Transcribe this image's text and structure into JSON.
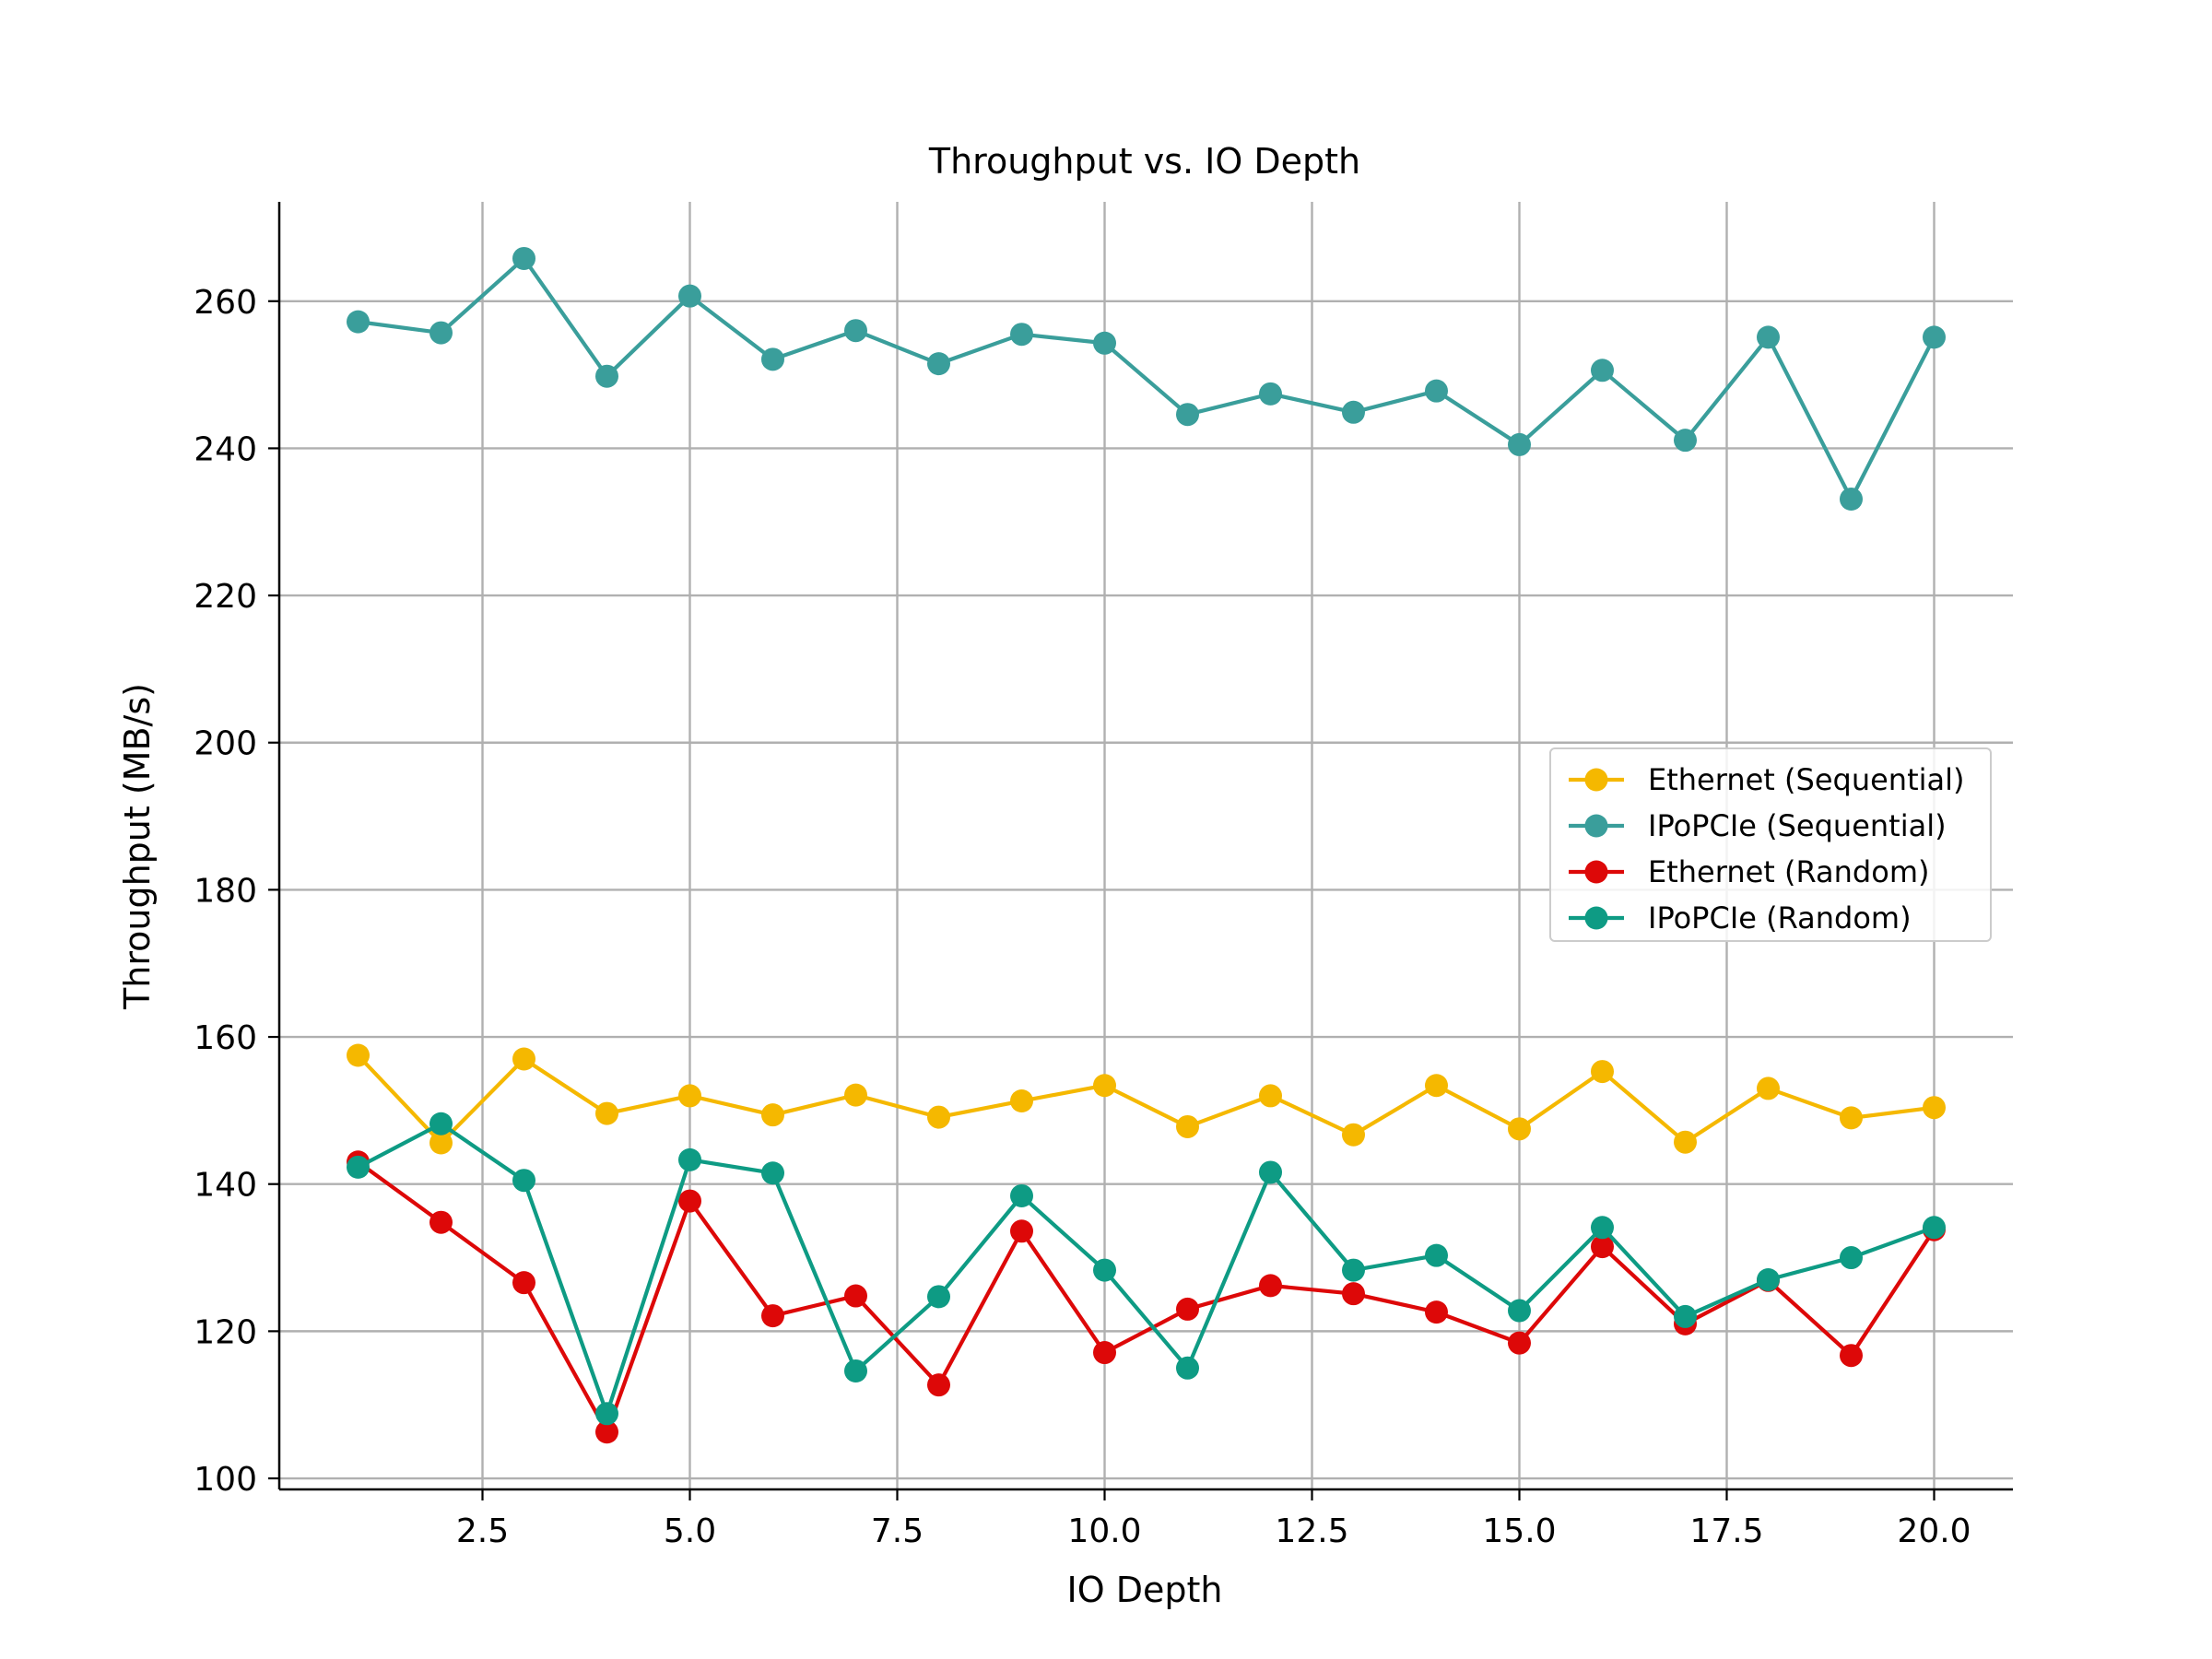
{
  "chart_data": {
    "type": "line",
    "title": "Throughput vs. IO Depth",
    "xlabel": "IO Depth",
    "ylabel": "Throughput (MB/s)",
    "xlim": [
      0.05,
      20.95
    ],
    "ylim": [
      98.5,
      273.5
    ],
    "x_ticks": [
      2.5,
      5.0,
      7.5,
      10.0,
      12.5,
      15.0,
      17.5,
      20.0
    ],
    "x_tick_labels": [
      "2.5",
      "5.0",
      "7.5",
      "10.0",
      "12.5",
      "15.0",
      "17.5",
      "20.0"
    ],
    "y_ticks": [
      100,
      120,
      140,
      160,
      180,
      200,
      220,
      240,
      260
    ],
    "y_tick_labels": [
      "100",
      "120",
      "140",
      "160",
      "180",
      "200",
      "220",
      "240",
      "260"
    ],
    "grid": true,
    "legend_position": "center-right",
    "x": [
      1,
      2,
      3,
      4,
      5,
      6,
      7,
      8,
      9,
      10,
      11,
      12,
      13,
      14,
      15,
      16,
      17,
      18,
      19,
      20
    ],
    "series": [
      {
        "name": "Ethernet (Sequential)",
        "color": "#F5B800",
        "values": [
          157.5,
          145.6,
          157.0,
          149.6,
          152.0,
          149.4,
          152.1,
          149.1,
          151.3,
          153.4,
          147.8,
          152.0,
          146.7,
          153.4,
          147.5,
          155.3,
          145.7,
          153.0,
          149.0,
          150.4
        ]
      },
      {
        "name": "IPoPCIe (Sequential)",
        "color": "#3A9E9B",
        "values": [
          257.2,
          255.7,
          265.8,
          249.8,
          260.7,
          252.1,
          256.0,
          251.5,
          255.5,
          254.3,
          244.6,
          247.4,
          244.9,
          247.8,
          240.5,
          250.6,
          241.1,
          255.1,
          233.1,
          255.1
        ]
      },
      {
        "name": "Ethernet (Random)",
        "color": "#DD0808",
        "values": [
          143.0,
          134.8,
          126.6,
          106.3,
          137.7,
          122.1,
          124.8,
          112.7,
          133.6,
          117.1,
          123.0,
          126.2,
          125.1,
          122.6,
          118.4,
          131.5,
          121.0,
          126.9,
          116.7,
          133.8
        ]
      },
      {
        "name": "IPoPCIe (Random)",
        "color": "#0E9B84",
        "values": [
          142.3,
          148.2,
          140.5,
          108.8,
          143.3,
          141.5,
          114.6,
          124.7,
          138.4,
          128.3,
          115.0,
          141.6,
          128.3,
          130.3,
          122.8,
          134.1,
          122.0,
          127.0,
          130.0,
          134.1
        ]
      }
    ]
  }
}
